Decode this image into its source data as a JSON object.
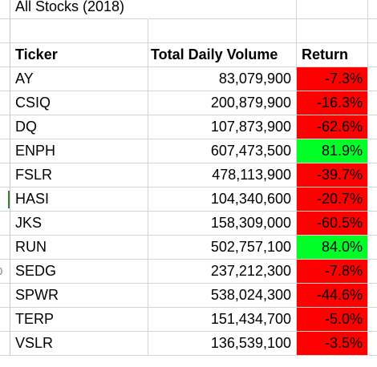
{
  "sheet": {
    "title": "All Stocks (2018)",
    "headers": {
      "ticker": "Ticker",
      "volume": "Total Daily Volume",
      "return": "Return"
    },
    "gutter_labels": [
      "",
      "",
      "",
      "",
      "",
      "",
      "",
      "",
      "0",
      "",
      "",
      "",
      "",
      ""
    ],
    "colors": {
      "negative": "#ff0000",
      "positive": "#00ff26"
    },
    "rows": [
      {
        "ticker": "AY",
        "volume": "83,079,900",
        "return": "-7.3%",
        "sign": "neg"
      },
      {
        "ticker": "CSIQ",
        "volume": "200,879,900",
        "return": "-16.3%",
        "sign": "neg"
      },
      {
        "ticker": "DQ",
        "volume": "107,873,900",
        "return": "-62.6%",
        "sign": "neg"
      },
      {
        "ticker": "ENPH",
        "volume": "607,473,500",
        "return": "81.9%",
        "sign": "pos"
      },
      {
        "ticker": "FSLR",
        "volume": "478,113,900",
        "return": "-39.7%",
        "sign": "neg"
      },
      {
        "ticker": "HASI",
        "volume": "104,340,600",
        "return": "-20.7%",
        "sign": "neg"
      },
      {
        "ticker": "JKS",
        "volume": "158,309,000",
        "return": "-60.5%",
        "sign": "neg"
      },
      {
        "ticker": "RUN",
        "volume": "502,757,100",
        "return": "84.0%",
        "sign": "pos"
      },
      {
        "ticker": "SEDG",
        "volume": "237,212,300",
        "return": "-7.8%",
        "sign": "neg"
      },
      {
        "ticker": "SPWR",
        "volume": "538,024,300",
        "return": "-44.6%",
        "sign": "neg"
      },
      {
        "ticker": "TERP",
        "volume": "151,434,700",
        "return": "-5.0%",
        "sign": "neg"
      },
      {
        "ticker": "VSLR",
        "volume": "136,539,100",
        "return": "-3.5%",
        "sign": "neg"
      }
    ]
  }
}
